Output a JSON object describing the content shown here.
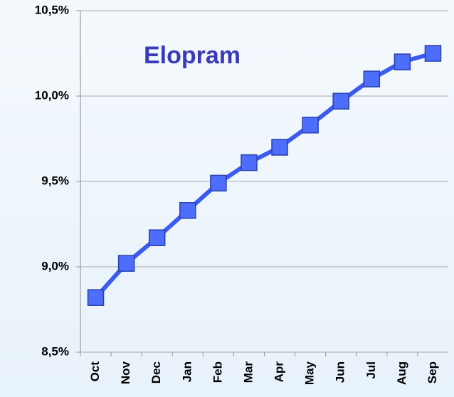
{
  "chart_data": {
    "type": "line",
    "title": "Elopram",
    "categories": [
      "Oct",
      "Nov",
      "Dec",
      "Jan",
      "Feb",
      "Mar",
      "Apr",
      "May",
      "Jun",
      "Jul",
      "Aug",
      "Sep"
    ],
    "series": [
      {
        "name": "Elopram",
        "color": "#3a5cf0",
        "values": [
          8.82,
          9.02,
          9.17,
          9.33,
          9.49,
          9.61,
          9.7,
          9.83,
          9.97,
          10.1,
          10.2,
          10.25
        ]
      }
    ],
    "ylim": [
      8.5,
      10.5
    ],
    "yticks": [
      {
        "value": 8.5,
        "label": "8,5%"
      },
      {
        "value": 9.0,
        "label": "9,0%"
      },
      {
        "value": 9.5,
        "label": "9,5%"
      },
      {
        "value": 10.0,
        "label": "10,0%"
      },
      {
        "value": 10.5,
        "label": "10,5%"
      }
    ],
    "grid": true
  }
}
